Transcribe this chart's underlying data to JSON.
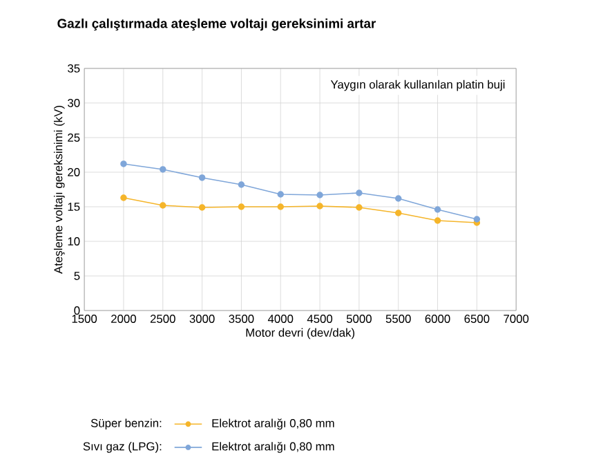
{
  "chart_data": {
    "type": "line",
    "title": "Gazlı çalıştırmada ateşleme voltajı gereksinimi artar",
    "xlabel": "Motor devri (dev/dak)",
    "ylabel": "Ateşleme voltajı gereksinimi (kV)",
    "x": [
      2000,
      2500,
      3000,
      3500,
      4000,
      4500,
      5000,
      5500,
      6000,
      6500
    ],
    "series": [
      {
        "name": "Elektrot aralığı 0,80 mm",
        "color": "#f5b52a",
        "values": [
          16.3,
          15.2,
          14.9,
          15.0,
          15.0,
          15.1,
          14.9,
          14.1,
          13.0,
          12.7
        ]
      },
      {
        "name": "Elektrot aralığı 0,80 mm",
        "color": "#7fa6d9",
        "values": [
          21.2,
          20.4,
          19.2,
          18.2,
          16.8,
          16.7,
          17.0,
          16.2,
          14.6,
          13.2
        ]
      }
    ],
    "annotations": [
      "Yaygın olarak kullanılan platin buji",
      "Süper benzin:",
      "Sıvı gaz (LPG):"
    ],
    "xlim": [
      1500,
      7000
    ],
    "xticks": [
      1500,
      2000,
      2500,
      3000,
      3500,
      4000,
      4500,
      5000,
      5500,
      6000,
      6500,
      7000
    ],
    "ylim": [
      0,
      35
    ],
    "yticks": [
      0,
      5,
      10,
      15,
      20,
      25,
      30,
      35
    ],
    "grid": true,
    "legend": "bottom",
    "marker": "circle",
    "line_style": "solid"
  }
}
